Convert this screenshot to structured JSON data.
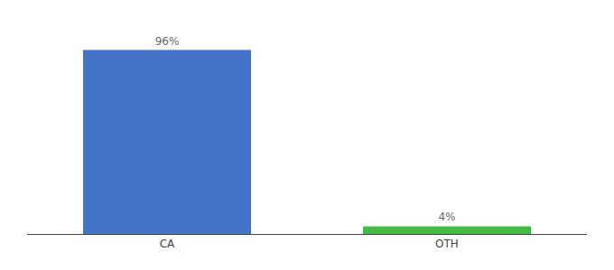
{
  "chart_data": {
    "type": "bar",
    "categories": [
      "CA",
      "OTH"
    ],
    "values": [
      96,
      4
    ],
    "value_labels": [
      "96%",
      "4%"
    ],
    "colors": [
      "#4472c4",
      "#44bb44"
    ],
    "ylim": [
      0,
      108
    ],
    "data_labels": true,
    "tick_labels": "x",
    "grid": false
  }
}
